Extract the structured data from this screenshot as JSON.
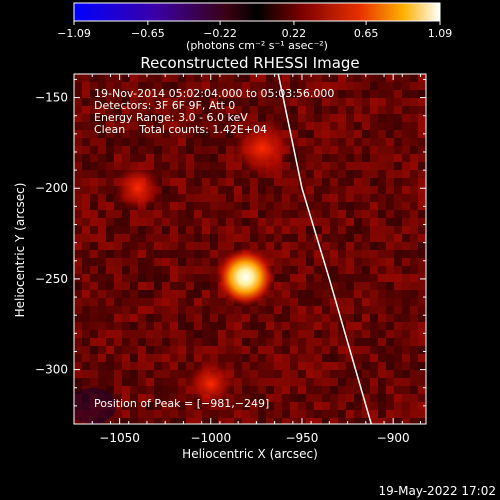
{
  "chart_data": {
    "type": "heatmap",
    "title": "Reconstructed RHESSI Image",
    "xlabel": "Heliocentric X (arcsec)",
    "ylabel": "Heliocentric Y (arcsec)",
    "xlim": [
      -1075,
      -882
    ],
    "ylim": [
      -330,
      -137
    ],
    "xticks": [
      -1050,
      -1000,
      -950,
      -900
    ],
    "yticks": [
      -150,
      -200,
      -250,
      -300
    ],
    "xtick_labels": [
      "−1050",
      "−1000",
      "−950",
      "−900"
    ],
    "ytick_labels": [
      "−150",
      "−200",
      "−250",
      "−300"
    ],
    "colorbar": {
      "ticks": [
        -1.09,
        -0.65,
        -0.22,
        0.22,
        0.65,
        1.09
      ],
      "tick_labels": [
        "−1.09",
        "−0.65",
        "−0.22",
        "0.22",
        "0.65",
        "1.09"
      ],
      "unit_text": "(photons cm⁻² s⁻¹ asec⁻²)"
    },
    "annotations": [
      "19-Nov-2014 05:02:04.000 to 05:03:56.000",
      "Detectors: 3F 6F 9F, Att 0",
      "Energy Range: 3.0 - 6.0 keV",
      "Clean    Total counts: 1.42E+04"
    ],
    "peak_label": "Position of Peak = [−981,−249]",
    "peak": {
      "x": -981,
      "y": -249,
      "value": 1.09
    },
    "secondary_sources": [
      {
        "x": -972,
        "y": -178,
        "value": 0.45
      },
      {
        "x": -1040,
        "y": -200,
        "value": 0.3
      },
      {
        "x": -1000,
        "y": -308,
        "value": 0.28
      }
    ],
    "limb_points": [
      {
        "x": -963,
        "y": -137
      },
      {
        "x": -950,
        "y": -200
      },
      {
        "x": -935,
        "y": -250
      },
      {
        "x": -912,
        "y": -330
      }
    ],
    "grid": false,
    "colormap": "hot-cold"
  },
  "timestamp": "19-May-2022 17:02",
  "colors": {
    "background": "#000000",
    "text": "#ffffff",
    "limb": "#ffffff"
  }
}
